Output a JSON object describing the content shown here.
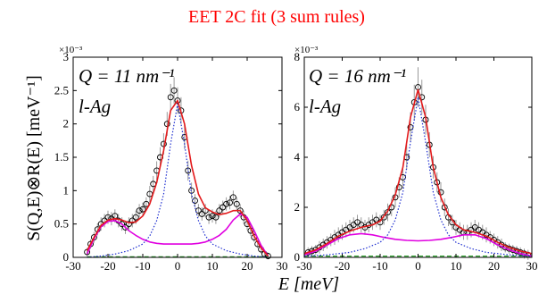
{
  "figure": {
    "title": "EET 2C fit (3 sum rules)",
    "ylabel": "S(Q,E)⊗R(E) [meV⁻¹]",
    "xlabel": "E [meV]"
  },
  "colors": {
    "title": "#ff0000",
    "data": "#000000",
    "errorbar": "#9a9a9a",
    "total_fit": "#e31a1c",
    "central": "#1f2fd0",
    "sides": "#e000e0",
    "background": "#2ca02c"
  },
  "chart_data": [
    {
      "type": "scatter",
      "panel": "left",
      "annotations": [
        "Q = 11 nm⁻¹",
        "l-Ag"
      ],
      "multiplier": "×10⁻³",
      "xlim": [
        -30,
        30
      ],
      "ylim": [
        0,
        3
      ],
      "xticks": [
        "-30",
        "-20",
        "-10",
        "0",
        "10",
        "20",
        "30"
      ],
      "yticks": [
        "0",
        "0.5",
        "1",
        "1.5",
        "2",
        "2.5",
        "3"
      ],
      "grid": false,
      "series": [
        {
          "role": "data",
          "style": "open circles with error bars",
          "x": [
            -26,
            -25,
            -24,
            -23,
            -22,
            -21,
            -20,
            -19,
            -18,
            -17,
            -16,
            -15,
            -14,
            -13,
            -12,
            -11,
            -10,
            -9,
            -8,
            -7,
            -6,
            -5,
            -4,
            -3,
            -2,
            -1,
            0,
            1,
            2,
            3,
            4,
            5,
            6,
            7,
            8,
            9,
            10,
            11,
            12,
            13,
            14,
            15,
            16,
            17,
            18,
            19,
            20,
            21,
            22,
            23,
            24,
            25,
            26
          ],
          "y": [
            0.08,
            0.2,
            0.3,
            0.42,
            0.5,
            0.55,
            0.6,
            0.58,
            0.62,
            0.55,
            0.5,
            0.45,
            0.5,
            0.55,
            0.6,
            0.7,
            0.72,
            0.8,
            0.95,
            1.1,
            1.3,
            1.5,
            1.7,
            2.0,
            2.4,
            2.5,
            2.35,
            2.2,
            1.8,
            1.3,
            1.0,
            0.85,
            0.7,
            0.65,
            0.7,
            0.6,
            0.62,
            0.6,
            0.7,
            0.75,
            0.8,
            0.82,
            0.9,
            0.8,
            0.7,
            0.6,
            0.5,
            0.4,
            0.3,
            0.2,
            0.12,
            0.05,
            0.02
          ],
          "err": [
            0.06,
            0.07,
            0.08,
            0.09,
            0.1,
            0.1,
            0.1,
            0.1,
            0.1,
            0.1,
            0.1,
            0.1,
            0.1,
            0.1,
            0.1,
            0.1,
            0.1,
            0.1,
            0.12,
            0.12,
            0.14,
            0.15,
            0.16,
            0.18,
            0.2,
            0.2,
            0.2,
            0.2,
            0.18,
            0.15,
            0.12,
            0.1,
            0.1,
            0.1,
            0.1,
            0.1,
            0.1,
            0.1,
            0.1,
            0.1,
            0.1,
            0.1,
            0.1,
            0.1,
            0.1,
            0.1,
            0.09,
            0.08,
            0.07,
            0.06,
            0.06,
            0.05,
            0.05
          ]
        },
        {
          "role": "total_fit",
          "style": "red solid",
          "x": [
            -26,
            -24,
            -22,
            -20,
            -18,
            -16,
            -14,
            -12,
            -10,
            -8,
            -6,
            -4,
            -2,
            0,
            2,
            4,
            6,
            8,
            10,
            12,
            14,
            16,
            18,
            20,
            22,
            24,
            26
          ],
          "y": [
            0.1,
            0.3,
            0.48,
            0.56,
            0.58,
            0.56,
            0.52,
            0.53,
            0.62,
            0.8,
            1.12,
            1.6,
            2.2,
            2.35,
            2.0,
            1.38,
            0.95,
            0.74,
            0.68,
            0.64,
            0.66,
            0.7,
            0.7,
            0.55,
            0.32,
            0.14,
            0.02
          ]
        },
        {
          "role": "central_component",
          "style": "blue dotted",
          "x": [
            -26,
            -22,
            -18,
            -14,
            -10,
            -8,
            -6,
            -4,
            -2,
            0,
            2,
            4,
            6,
            8,
            10,
            14,
            18,
            22,
            26
          ],
          "y": [
            0.0,
            0.02,
            0.05,
            0.1,
            0.2,
            0.32,
            0.55,
            0.95,
            1.7,
            2.3,
            1.7,
            0.95,
            0.55,
            0.32,
            0.2,
            0.1,
            0.05,
            0.02,
            0.0
          ]
        },
        {
          "role": "side_components",
          "style": "magenta solid",
          "x": [
            -26,
            -24,
            -22,
            -20,
            -18,
            -16,
            -14,
            -12,
            -10,
            -8,
            -6,
            -4,
            -2,
            0,
            2,
            4,
            6,
            8,
            10,
            12,
            14,
            16,
            18,
            20,
            22,
            24,
            26
          ],
          "y": [
            0.05,
            0.28,
            0.46,
            0.54,
            0.55,
            0.5,
            0.4,
            0.33,
            0.27,
            0.23,
            0.21,
            0.2,
            0.2,
            0.2,
            0.2,
            0.2,
            0.21,
            0.23,
            0.27,
            0.33,
            0.42,
            0.56,
            0.65,
            0.6,
            0.4,
            0.18,
            0.02
          ]
        },
        {
          "role": "background",
          "style": "green dashed",
          "x": [
            -26,
            26
          ],
          "y": [
            0.01,
            0.01
          ]
        }
      ]
    },
    {
      "type": "scatter",
      "panel": "right",
      "annotations": [
        "Q = 16 nm⁻¹",
        "l-Ag"
      ],
      "multiplier": "×10⁻³",
      "xlim": [
        -30,
        30
      ],
      "ylim": [
        0,
        8
      ],
      "xticks": [
        "-30",
        "-20",
        "-10",
        "0",
        "10",
        "20",
        "30"
      ],
      "yticks": [
        "0",
        "2",
        "4",
        "6",
        "8"
      ],
      "grid": false,
      "series": [
        {
          "role": "data",
          "style": "open circles with error bars",
          "x": [
            -29,
            -28,
            -27,
            -26,
            -25,
            -24,
            -23,
            -22,
            -21,
            -20,
            -19,
            -18,
            -17,
            -16,
            -15,
            -14,
            -13,
            -12,
            -11,
            -10,
            -9,
            -8,
            -7,
            -6,
            -5,
            -4,
            -3,
            -2,
            -1,
            0,
            1,
            2,
            3,
            4,
            5,
            6,
            7,
            8,
            9,
            10,
            11,
            12,
            13,
            14,
            15,
            16,
            17,
            18,
            19,
            20,
            21,
            22,
            23,
            24,
            25,
            26,
            27,
            28,
            29
          ],
          "y": [
            0.2,
            0.25,
            0.3,
            0.4,
            0.5,
            0.6,
            0.7,
            0.8,
            0.9,
            1.0,
            1.1,
            1.2,
            1.3,
            1.4,
            1.3,
            1.2,
            1.3,
            1.4,
            1.5,
            1.4,
            1.6,
            1.8,
            2.0,
            2.4,
            2.8,
            3.2,
            4.0,
            5.2,
            6.2,
            6.8,
            6.4,
            5.5,
            4.5,
            3.6,
            3.0,
            2.6,
            2.0,
            1.6,
            1.4,
            1.2,
            1.1,
            1.0,
            1.0,
            1.1,
            1.2,
            1.1,
            1.0,
            0.9,
            0.8,
            0.7,
            0.6,
            0.5,
            0.4,
            0.35,
            0.3,
            0.25,
            0.2,
            0.15,
            0.1
          ],
          "err": [
            0.2,
            0.2,
            0.2,
            0.25,
            0.25,
            0.25,
            0.25,
            0.3,
            0.3,
            0.3,
            0.3,
            0.3,
            0.3,
            0.3,
            0.3,
            0.3,
            0.3,
            0.3,
            0.3,
            0.3,
            0.3,
            0.35,
            0.35,
            0.4,
            0.4,
            0.45,
            0.5,
            0.6,
            0.7,
            0.8,
            0.7,
            0.6,
            0.5,
            0.45,
            0.4,
            0.4,
            0.35,
            0.35,
            0.3,
            0.3,
            0.3,
            0.3,
            0.3,
            0.3,
            0.3,
            0.3,
            0.3,
            0.3,
            0.25,
            0.25,
            0.25,
            0.25,
            0.2,
            0.2,
            0.2,
            0.2,
            0.2,
            0.2,
            0.2
          ]
        },
        {
          "role": "total_fit",
          "style": "red solid",
          "x": [
            -30,
            -27,
            -24,
            -21,
            -18,
            -15,
            -12,
            -10,
            -8,
            -6,
            -4,
            -2,
            0,
            2,
            4,
            6,
            8,
            10,
            12,
            15,
            18,
            21,
            24,
            27,
            30
          ],
          "y": [
            0.15,
            0.3,
            0.55,
            0.85,
            1.05,
            1.2,
            1.3,
            1.45,
            1.85,
            2.5,
            3.6,
            5.6,
            6.7,
            5.6,
            3.6,
            2.4,
            1.7,
            1.3,
            1.1,
            1.0,
            0.85,
            0.6,
            0.4,
            0.25,
            0.15
          ]
        },
        {
          "role": "central_component",
          "style": "blue dotted",
          "x": [
            -30,
            -24,
            -18,
            -14,
            -10,
            -8,
            -6,
            -4,
            -2,
            0,
            2,
            4,
            6,
            8,
            10,
            14,
            18,
            24,
            30
          ],
          "y": [
            0.05,
            0.1,
            0.2,
            0.35,
            0.6,
            0.9,
            1.5,
            2.6,
            4.6,
            6.4,
            4.6,
            2.6,
            1.5,
            0.9,
            0.6,
            0.35,
            0.2,
            0.1,
            0.05
          ]
        },
        {
          "role": "side_components",
          "style": "magenta solid",
          "x": [
            -30,
            -27,
            -24,
            -21,
            -18,
            -15,
            -12,
            -9,
            -6,
            -3,
            0,
            3,
            6,
            9,
            12,
            15,
            18,
            21,
            24,
            27,
            30
          ],
          "y": [
            0.1,
            0.25,
            0.5,
            0.75,
            0.9,
            0.95,
            0.9,
            0.8,
            0.72,
            0.68,
            0.66,
            0.68,
            0.72,
            0.8,
            0.9,
            0.9,
            0.75,
            0.5,
            0.3,
            0.15,
            0.05
          ]
        },
        {
          "role": "background",
          "style": "green dashed",
          "x": [
            -30,
            30
          ],
          "y": [
            0.05,
            0.05
          ]
        }
      ]
    }
  ]
}
